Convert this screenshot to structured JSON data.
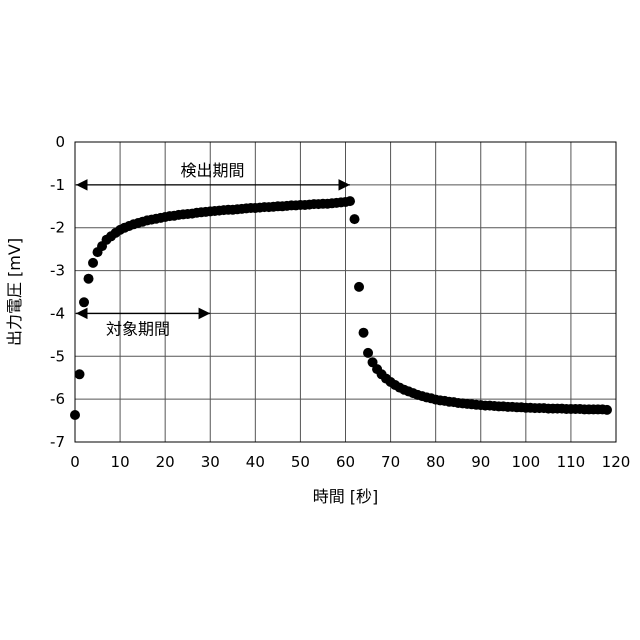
{
  "chart_data": {
    "type": "scatter",
    "xlabel": "時間 [秒]",
    "ylabel": "出力電圧 [mV]",
    "xlim": [
      0,
      120
    ],
    "ylim": [
      -7,
      0
    ],
    "x_ticks": [
      "0",
      "10",
      "20",
      "30",
      "40",
      "50",
      "60",
      "70",
      "80",
      "90",
      "100",
      "110",
      "120"
    ],
    "y_ticks": [
      "0",
      "-1",
      "-2",
      "-3",
      "-4",
      "-5",
      "-6",
      "-7"
    ],
    "grid": true,
    "marker_color": "#000000",
    "annotations": [
      {
        "label": "検出期間",
        "x_start": 0,
        "x_end": 61,
        "y": -1
      },
      {
        "label": "対象期間",
        "x_start": 0,
        "x_end": 30,
        "y": -4
      }
    ],
    "series": [
      {
        "points": [
          [
            0,
            -6.37
          ],
          [
            1,
            -5.42
          ],
          [
            2,
            -3.74
          ],
          [
            3,
            -3.19
          ],
          [
            4,
            -2.82
          ],
          [
            5,
            -2.57
          ],
          [
            6,
            -2.43
          ],
          [
            7,
            -2.28
          ],
          [
            8,
            -2.2
          ],
          [
            9,
            -2.12
          ],
          [
            10,
            -2.05
          ],
          [
            11,
            -2.0
          ],
          [
            12,
            -1.96
          ],
          [
            13,
            -1.92
          ],
          [
            14,
            -1.89
          ],
          [
            15,
            -1.86
          ],
          [
            16,
            -1.83
          ],
          [
            17,
            -1.81
          ],
          [
            18,
            -1.79
          ],
          [
            19,
            -1.77
          ],
          [
            20,
            -1.75
          ],
          [
            21,
            -1.73
          ],
          [
            22,
            -1.72
          ],
          [
            23,
            -1.7
          ],
          [
            24,
            -1.69
          ],
          [
            25,
            -1.68
          ],
          [
            26,
            -1.67
          ],
          [
            27,
            -1.65
          ],
          [
            28,
            -1.64
          ],
          [
            29,
            -1.63
          ],
          [
            30,
            -1.62
          ],
          [
            31,
            -1.61
          ],
          [
            32,
            -1.6
          ],
          [
            33,
            -1.59
          ],
          [
            34,
            -1.58
          ],
          [
            35,
            -1.58
          ],
          [
            36,
            -1.57
          ],
          [
            37,
            -1.56
          ],
          [
            38,
            -1.55
          ],
          [
            39,
            -1.54
          ],
          [
            40,
            -1.54
          ],
          [
            41,
            -1.53
          ],
          [
            42,
            -1.52
          ],
          [
            43,
            -1.52
          ],
          [
            44,
            -1.51
          ],
          [
            45,
            -1.5
          ],
          [
            46,
            -1.5
          ],
          [
            47,
            -1.49
          ],
          [
            48,
            -1.48
          ],
          [
            49,
            -1.48
          ],
          [
            50,
            -1.47
          ],
          [
            51,
            -1.47
          ],
          [
            52,
            -1.46
          ],
          [
            53,
            -1.45
          ],
          [
            54,
            -1.45
          ],
          [
            55,
            -1.44
          ],
          [
            56,
            -1.44
          ],
          [
            57,
            -1.43
          ],
          [
            58,
            -1.42
          ],
          [
            59,
            -1.41
          ],
          [
            60,
            -1.4
          ],
          [
            61,
            -1.38
          ],
          [
            62,
            -1.8
          ],
          [
            63,
            -3.38
          ],
          [
            64,
            -4.45
          ],
          [
            65,
            -4.92
          ],
          [
            66,
            -5.14
          ],
          [
            67,
            -5.3
          ],
          [
            68,
            -5.42
          ],
          [
            69,
            -5.52
          ],
          [
            70,
            -5.6
          ],
          [
            71,
            -5.67
          ],
          [
            72,
            -5.73
          ],
          [
            73,
            -5.78
          ],
          [
            74,
            -5.82
          ],
          [
            75,
            -5.86
          ],
          [
            76,
            -5.9
          ],
          [
            77,
            -5.93
          ],
          [
            78,
            -5.96
          ],
          [
            79,
            -5.98
          ],
          [
            80,
            -6.01
          ],
          [
            81,
            -6.03
          ],
          [
            82,
            -6.04
          ],
          [
            83,
            -6.06
          ],
          [
            84,
            -6.07
          ],
          [
            85,
            -6.09
          ],
          [
            86,
            -6.1
          ],
          [
            87,
            -6.11
          ],
          [
            88,
            -6.12
          ],
          [
            89,
            -6.13
          ],
          [
            90,
            -6.14
          ],
          [
            91,
            -6.15
          ],
          [
            92,
            -6.15
          ],
          [
            93,
            -6.16
          ],
          [
            94,
            -6.17
          ],
          [
            95,
            -6.17
          ],
          [
            96,
            -6.18
          ],
          [
            97,
            -6.18
          ],
          [
            98,
            -6.19
          ],
          [
            99,
            -6.19
          ],
          [
            100,
            -6.2
          ],
          [
            101,
            -6.2
          ],
          [
            102,
            -6.21
          ],
          [
            103,
            -6.21
          ],
          [
            104,
            -6.21
          ],
          [
            105,
            -6.22
          ],
          [
            106,
            -6.22
          ],
          [
            107,
            -6.22
          ],
          [
            108,
            -6.22
          ],
          [
            109,
            -6.23
          ],
          [
            110,
            -6.23
          ],
          [
            111,
            -6.23
          ],
          [
            112,
            -6.23
          ],
          [
            113,
            -6.24
          ],
          [
            114,
            -6.24
          ],
          [
            115,
            -6.24
          ],
          [
            116,
            -6.24
          ],
          [
            117,
            -6.24
          ],
          [
            118,
            -6.25
          ]
        ]
      }
    ]
  }
}
